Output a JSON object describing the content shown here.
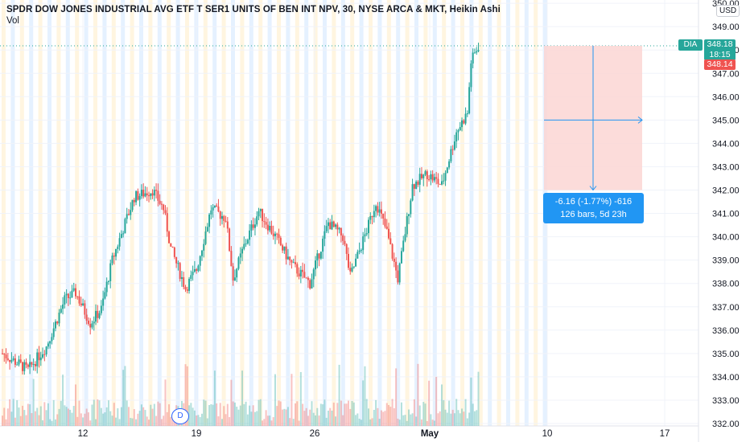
{
  "header": {
    "title": "SPDR DOW JONES INDUSTRIAL AVG ETF T SER1 UNITS OF BEN INT NPV, 30, NYSE ARCA & MKT, Heikin Ashi",
    "volume_label": "Vol",
    "currency": "USD"
  },
  "price_tags": {
    "symbol": "DIA",
    "last_price": "348.18",
    "countdown": "18:15",
    "secondary_price": "348.14"
  },
  "measure": {
    "line1": "-6.16 (-1.77%) -616",
    "line2": "126 bars, 5d 23h"
  },
  "event_badge": "D",
  "colors": {
    "up": "#26a69a",
    "down": "#ef5350",
    "measure_fill": "#fcd6d4",
    "measure_accent": "#2196f3",
    "session_band_a": "#fff5e0",
    "session_band_b": "#e5f1ff"
  },
  "chart_data": {
    "type": "candlestick",
    "style": "Heikin Ashi",
    "interval": "30",
    "symbol": "DIA",
    "y_axis": {
      "ticks": [
        "332.00",
        "333.00",
        "334.00",
        "335.00",
        "336.00",
        "337.00",
        "338.00",
        "339.00",
        "340.00",
        "341.00",
        "342.00",
        "343.00",
        "344.00",
        "345.00",
        "346.00",
        "347.00",
        "348.00",
        "349.00",
        "350.00"
      ],
      "range": [
        331.9,
        350.1
      ]
    },
    "x_axis": {
      "ticks": [
        {
          "label": "12",
          "bold": false
        },
        {
          "label": "19",
          "bold": false
        },
        {
          "label": "26",
          "bold": false
        },
        {
          "label": "May",
          "bold": true
        },
        {
          "label": "10",
          "bold": false
        },
        {
          "label": "17",
          "bold": false
        }
      ]
    },
    "price_path": [
      {
        "t": 0,
        "p": 335.0
      },
      {
        "t": 7,
        "p": 334.3
      },
      {
        "t": 12,
        "p": 335.3
      },
      {
        "t": 17,
        "p": 337.3
      },
      {
        "t": 20,
        "p": 337.6
      },
      {
        "t": 24,
        "p": 336.3
      },
      {
        "t": 27,
        "p": 336.9
      },
      {
        "t": 30,
        "p": 339.0
      },
      {
        "t": 36,
        "p": 341.7
      },
      {
        "t": 41,
        "p": 342.0
      },
      {
        "t": 44,
        "p": 341.2
      },
      {
        "t": 46,
        "p": 339.5
      },
      {
        "t": 50,
        "p": 337.8
      },
      {
        "t": 53,
        "p": 338.6
      },
      {
        "t": 57,
        "p": 341.2
      },
      {
        "t": 61,
        "p": 340.8
      },
      {
        "t": 63,
        "p": 338.2
      },
      {
        "t": 66,
        "p": 339.6
      },
      {
        "t": 70,
        "p": 341.1
      },
      {
        "t": 75,
        "p": 339.9
      },
      {
        "t": 79,
        "p": 338.8
      },
      {
        "t": 84,
        "p": 338.0
      },
      {
        "t": 89,
        "p": 340.6
      },
      {
        "t": 93,
        "p": 340.0
      },
      {
        "t": 95,
        "p": 338.3
      },
      {
        "t": 100,
        "p": 340.5
      },
      {
        "t": 102,
        "p": 341.5
      },
      {
        "t": 105,
        "p": 340.2
      },
      {
        "t": 108,
        "p": 338.2
      },
      {
        "t": 112,
        "p": 342.2
      },
      {
        "t": 116,
        "p": 342.7
      },
      {
        "t": 120,
        "p": 342.2
      },
      {
        "t": 124,
        "p": 344.5
      },
      {
        "t": 127,
        "p": 345.3
      },
      {
        "t": 128,
        "p": 347.5
      },
      {
        "t": 130,
        "p": 348.18
      }
    ],
    "measurement": {
      "from_price": 348.18,
      "to_price": 342.0,
      "change": -6.16,
      "change_pct": -1.77,
      "ticks": -616,
      "bars": 126,
      "span": "5d 23h"
    },
    "xlabel": "",
    "ylabel": "",
    "grid": true
  }
}
